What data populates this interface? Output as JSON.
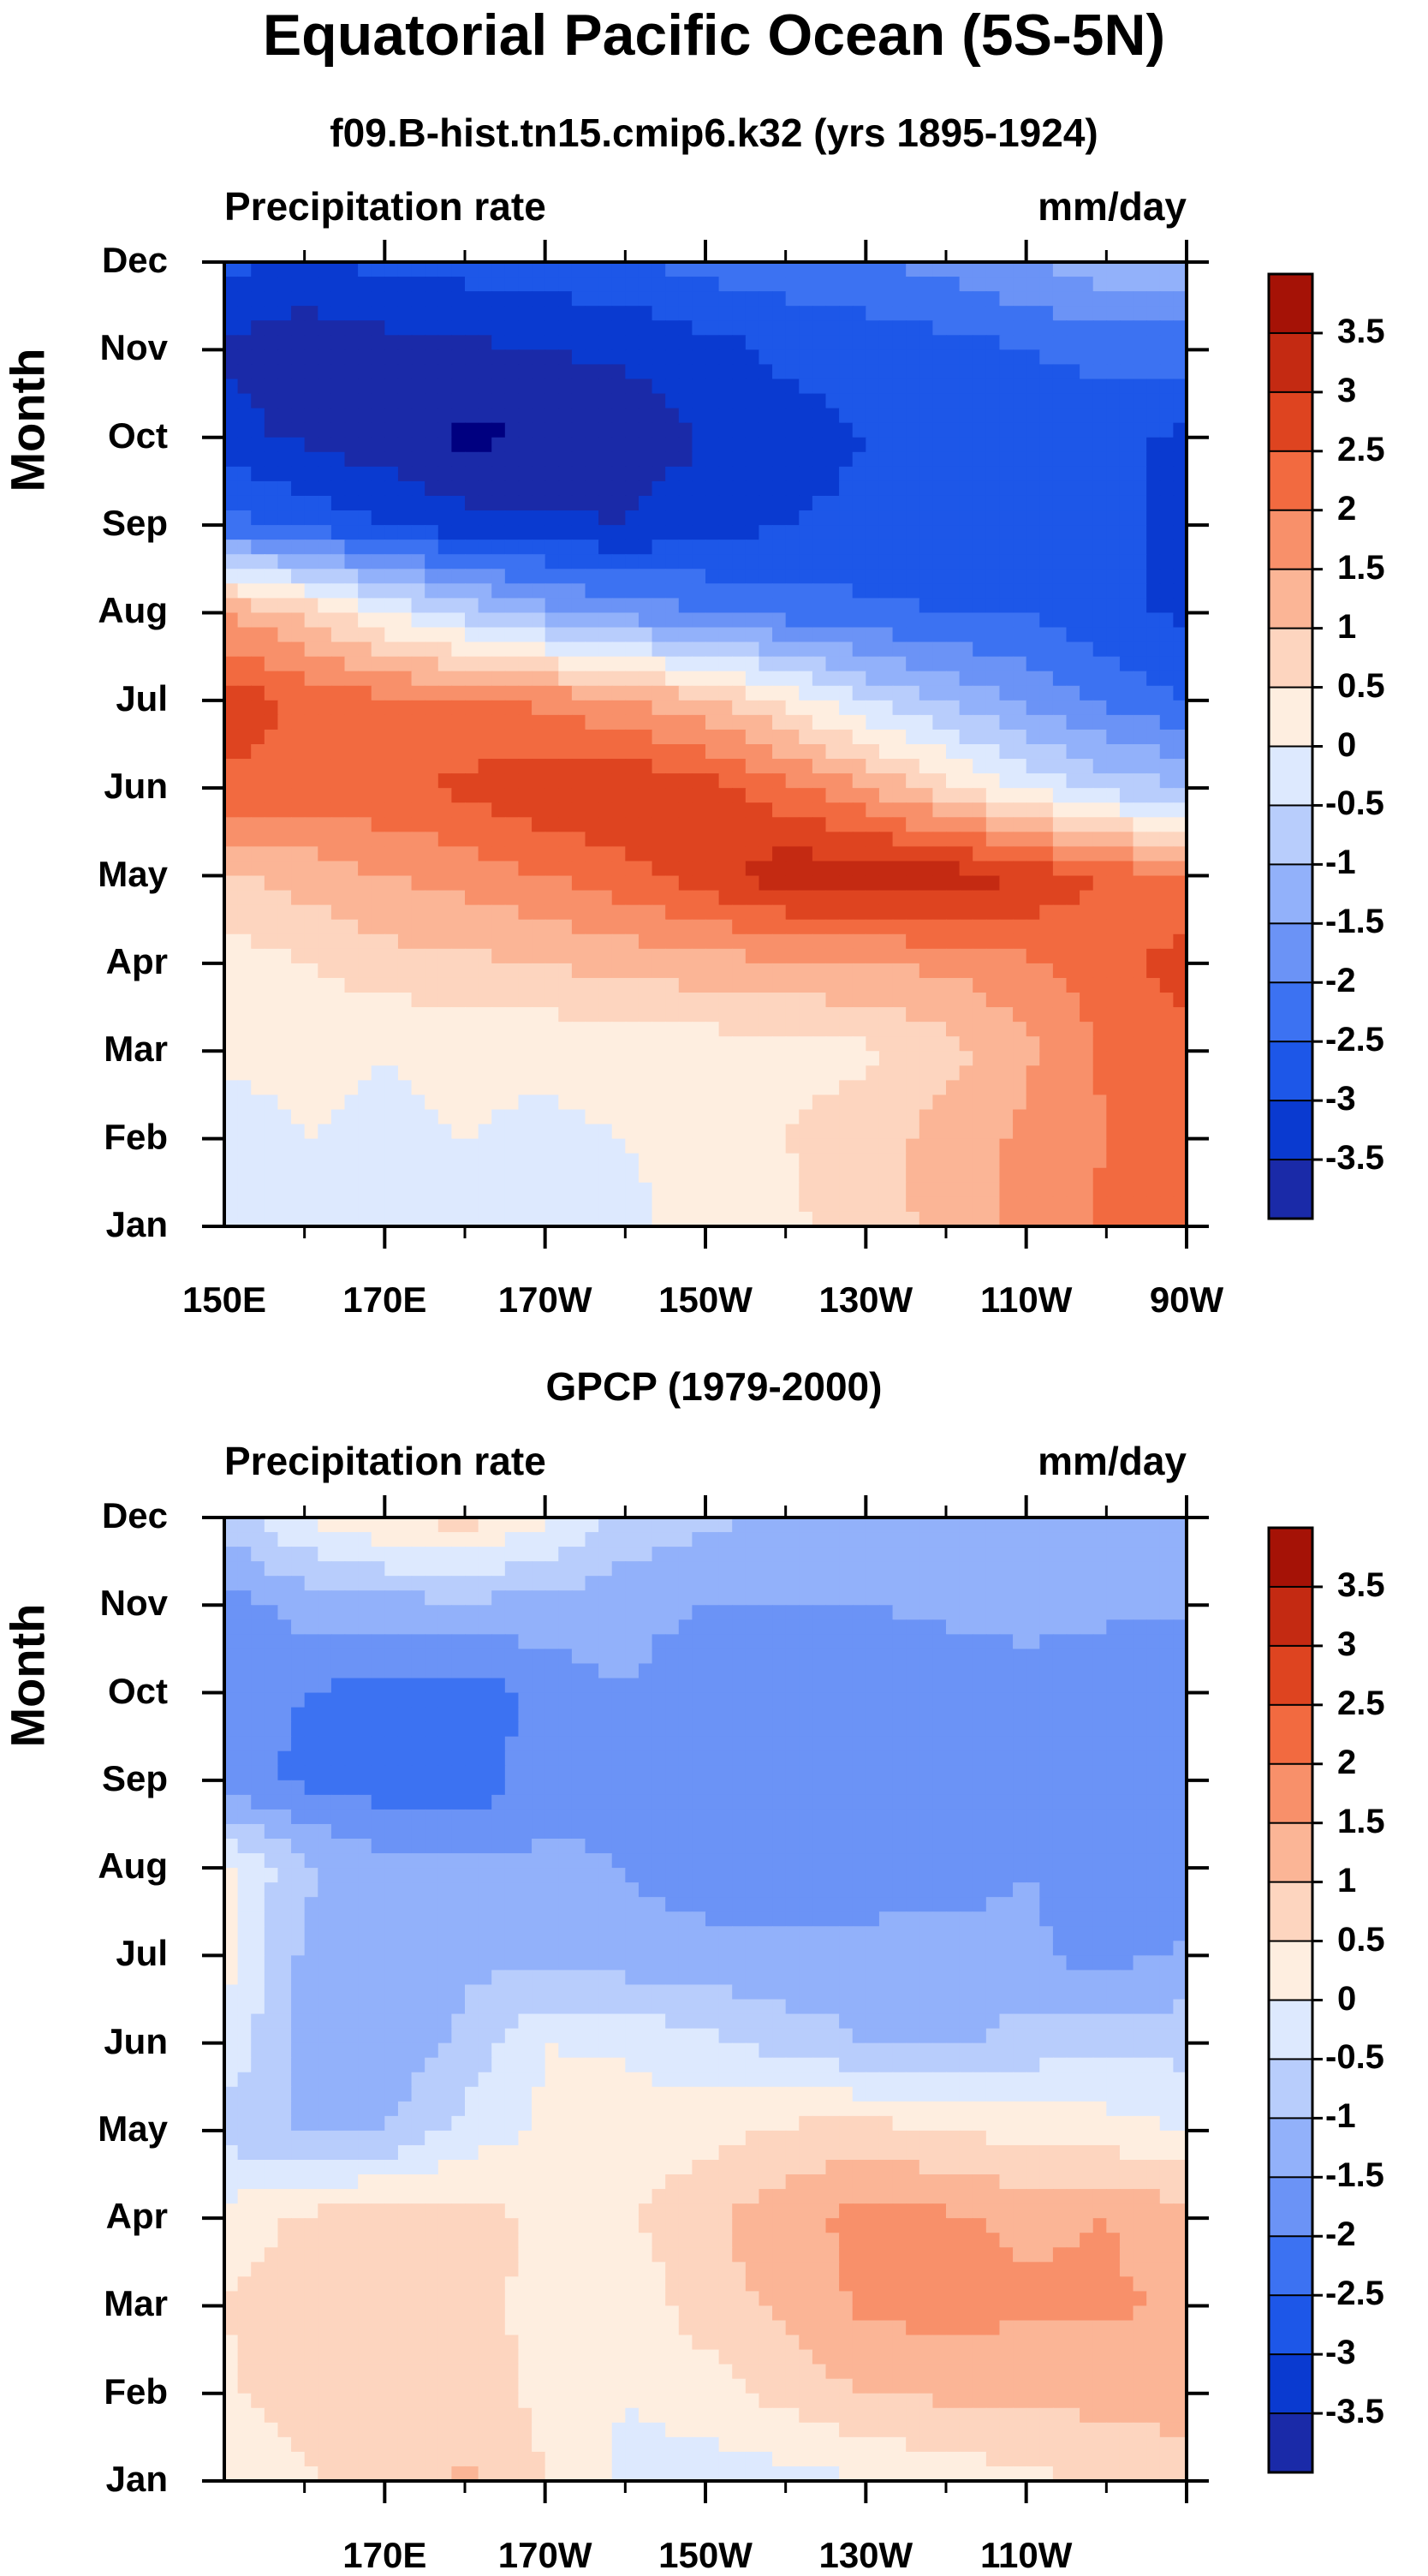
{
  "title": "Equatorial Pacific Ocean (5S-5N)",
  "colors": {
    "scale": [
      "#000080",
      "#1a2aa8",
      "#0a3ad0",
      "#1d57e8",
      "#3c72f2",
      "#6b93f6",
      "#92b1fa",
      "#b8cdfc",
      "#dde9fe",
      "#feeee0",
      "#fdd5bf",
      "#fbb596",
      "#f8906a",
      "#f26a40",
      "#de4420",
      "#c42a12",
      "#a51206",
      "#800000"
    ]
  },
  "chart_data": [
    {
      "type": "heatmap",
      "title": "f09.B-hist.tn15.cmip6.k32 (yrs 1895-1924)",
      "left_label": "Precipitation rate",
      "right_label": "mm/day",
      "ylabel": "Month",
      "xlabel": "",
      "xlim": [
        150,
        270
      ],
      "xticks": [
        170,
        190,
        210,
        230,
        250,
        270
      ],
      "x_tick_labels": [
        "150E",
        "170E",
        "170W",
        "150W",
        "130W",
        "110W",
        "90W"
      ],
      "y_tick_labels": [
        "Jan",
        "Feb",
        "Mar",
        "Apr",
        "May",
        "Jun",
        "Jul",
        "Aug",
        "Sep",
        "Oct",
        "Nov",
        "Dec"
      ],
      "x_nodes": [
        150,
        160,
        170,
        180,
        190,
        200,
        210,
        220,
        230,
        240,
        250,
        260,
        270
      ],
      "levels": [
        "-3.5",
        "-3",
        "-2.5",
        "-2",
        "-1.5",
        "-1",
        "-0.5",
        "0",
        "0.5",
        "1",
        "1.5",
        "2",
        "2.5",
        "3",
        "3.5"
      ],
      "z": [
        [
          0.2,
          0.3,
          0.4,
          0.4,
          0.3,
          0.4,
          0.7,
          0.9,
          1.2,
          1.7,
          2.2,
          2.6,
          2.9
        ],
        [
          0.3,
          0.5,
          0.4,
          0.5,
          0.4,
          0.5,
          0.6,
          1.0,
          1.3,
          1.7,
          2.1,
          2.5,
          2.9
        ],
        [
          0.6,
          0.6,
          0.5,
          0.6,
          0.6,
          0.7,
          0.7,
          0.8,
          0.9,
          1.3,
          1.9,
          2.6,
          2.9
        ],
        [
          0.7,
          1.0,
          1.3,
          1.4,
          1.5,
          1.7,
          1.8,
          1.9,
          2.0,
          2.1,
          2.4,
          2.8,
          3.2
        ],
        [
          1.4,
          1.7,
          2.0,
          2.2,
          2.5,
          2.8,
          3.3,
          3.8,
          3.9,
          3.8,
          3.5,
          2.9,
          2.5
        ],
        [
          2.9,
          2.8,
          2.9,
          3.1,
          3.4,
          3.5,
          3.2,
          2.7,
          2.0,
          1.2,
          0.4,
          -0.2,
          -0.5
        ],
        [
          3.3,
          2.9,
          2.6,
          2.5,
          2.4,
          2.0,
          1.6,
          0.9,
          0.0,
          -0.6,
          -1.1,
          -1.6,
          -2.0
        ],
        [
          2.0,
          1.4,
          0.5,
          -0.2,
          -0.8,
          -1.2,
          -1.5,
          -1.7,
          -1.9,
          -2.0,
          -2.0,
          -2.4,
          -2.6
        ],
        [
          -1.8,
          -2.2,
          -2.5,
          -2.8,
          -2.9,
          -3.0,
          -2.7,
          -2.5,
          -2.4,
          -2.3,
          -2.2,
          -2.4,
          -2.6
        ],
        [
          -2.8,
          -3.1,
          -3.3,
          -3.6,
          -3.5,
          -3.3,
          -3.0,
          -2.7,
          -2.5,
          -2.4,
          -2.3,
          -2.4,
          -2.6
        ],
        [
          -3.1,
          -3.4,
          -3.2,
          -3.1,
          -3.0,
          -2.9,
          -2.7,
          -2.4,
          -2.3,
          -2.2,
          -2.0,
          -1.8,
          -1.8
        ],
        [
          -2.4,
          -2.5,
          -2.4,
          -2.3,
          -2.2,
          -2.1,
          -1.8,
          -1.7,
          -1.6,
          -1.3,
          -1.0,
          -0.7,
          -0.6
        ]
      ]
    },
    {
      "type": "heatmap",
      "title": "GPCP (1979-2000)",
      "left_label": "Precipitation rate",
      "right_label": "mm/day",
      "ylabel": "Month",
      "xlabel": "",
      "xlim": [
        150,
        270
      ],
      "xticks": [
        170,
        190,
        210,
        230,
        250,
        270
      ],
      "x_tick_labels": [
        "170E",
        "170W",
        "150W",
        "130W",
        "110W"
      ],
      "y_tick_labels": [
        "Jan",
        "Feb",
        "Mar",
        "Apr",
        "May",
        "Jun",
        "Jul",
        "Aug",
        "Sep",
        "Oct",
        "Nov",
        "Dec"
      ],
      "x_nodes": [
        150,
        160,
        170,
        180,
        190,
        200,
        210,
        220,
        230,
        240,
        250,
        260,
        270
      ],
      "levels": [
        "-3.5",
        "-3",
        "-2.5",
        "-2",
        "-1.5",
        "-1",
        "-0.5",
        "0",
        "0.5",
        "1",
        "1.5",
        "2",
        "2.5",
        "3",
        "3.5"
      ],
      "z": [
        [
          0.6,
          0.9,
          1.2,
          1.6,
          1.0,
          0.4,
          0.3,
          0.3,
          0.5,
          0.7,
          0.9,
          1.0,
          1.2
        ],
        [
          0.9,
          1.3,
          1.5,
          1.2,
          0.9,
          0.5,
          0.7,
          1.2,
          1.5,
          1.6,
          1.6,
          1.7,
          1.8
        ],
        [
          1.0,
          1.3,
          1.3,
          1.1,
          0.9,
          0.6,
          1.3,
          1.6,
          2.1,
          2.2,
          2.1,
          2.1,
          1.9
        ],
        [
          0.7,
          1.1,
          1.3,
          1.2,
          0.9,
          0.9,
          1.4,
          1.8,
          2.2,
          2.1,
          1.9,
          2.0,
          1.7
        ],
        [
          -0.2,
          -0.6,
          -0.5,
          0.2,
          0.6,
          0.8,
          0.8,
          1.1,
          1.2,
          1.0,
          0.8,
          0.7,
          0.5
        ],
        [
          0.4,
          -0.8,
          -0.9,
          -0.4,
          0.5,
          0.4,
          0.1,
          -0.2,
          -0.5,
          -0.6,
          -0.3,
          -0.1,
          -0.2
        ],
        [
          0.7,
          -0.6,
          -0.8,
          -0.6,
          -0.7,
          -0.8,
          -0.8,
          -0.9,
          -0.8,
          -0.8,
          -0.9,
          -1.2,
          -0.9
        ],
        [
          0.6,
          -0.4,
          -0.8,
          -0.9,
          -0.9,
          -1.0,
          -1.3,
          -1.3,
          -1.3,
          -1.2,
          -1.0,
          -1.3,
          -1.4
        ],
        [
          -1.3,
          -1.6,
          -1.8,
          -1.9,
          -1.2,
          -1.1,
          -1.4,
          -1.4,
          -1.4,
          -1.3,
          -1.0,
          -1.4,
          -1.5
        ],
        [
          -1.3,
          -1.5,
          -1.7,
          -1.8,
          -1.3,
          -1.0,
          -1.4,
          -1.5,
          -1.4,
          -1.3,
          -1.1,
          -1.3,
          -1.4
        ],
        [
          -1.2,
          -0.8,
          -0.7,
          -0.6,
          -0.7,
          -0.8,
          -1.0,
          -1.0,
          -1.0,
          -0.9,
          -0.9,
          -0.9,
          -0.9
        ],
        [
          -0.3,
          0.5,
          1.0,
          1.2,
          0.6,
          -0.2,
          -0.4,
          -0.6,
          -0.7,
          -0.8,
          -0.8,
          -0.8,
          -0.8
        ]
      ]
    }
  ]
}
